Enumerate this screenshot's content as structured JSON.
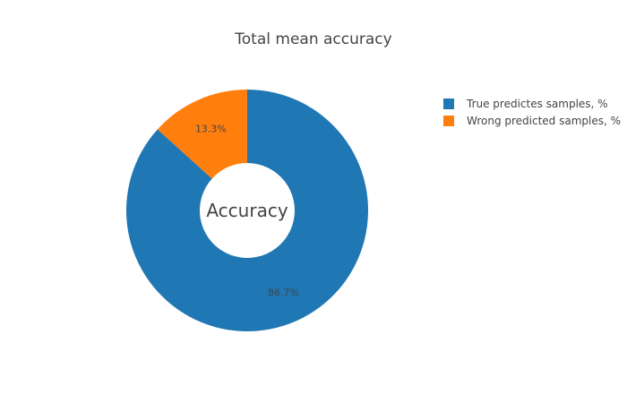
{
  "chart_data": {
    "type": "pie",
    "title": "Total mean accuracy",
    "center_label": "Accuracy",
    "slices": [
      {
        "name": "True predictes samples, %",
        "value": 86.7,
        "label": "86.7%",
        "color": "#1f77b4"
      },
      {
        "name": "Wrong predicted samples, %",
        "value": 13.3,
        "label": "13.3%",
        "color": "#ff7f0e"
      }
    ],
    "hole": true,
    "legend_position": "top-right"
  }
}
